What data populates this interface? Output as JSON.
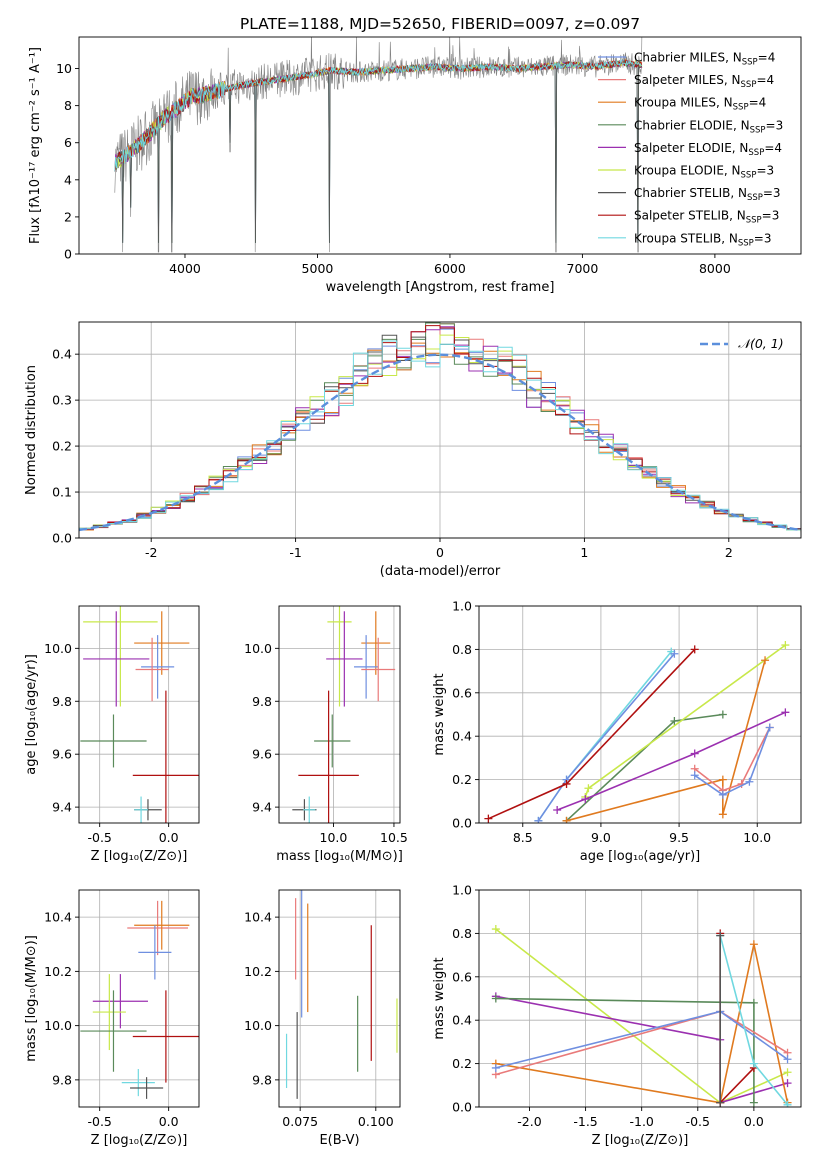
{
  "figure": {
    "title": "PLATE=1188, MJD=52650, FIBERID=0097, z=0.097"
  },
  "colors": {
    "chabrier_miles": "#6f8fe0",
    "salpeter_miles": "#e97a7a",
    "kroupa_miles": "#e07a1f",
    "chabrier_elodie": "#5a8a5a",
    "salpeter_elodie": "#9b30b0",
    "kroupa_elodie": "#c8e84a",
    "chabrier_stelib": "#555555",
    "salpeter_stelib": "#b01010",
    "kroupa_stelib": "#70d8e0",
    "data": "#808080",
    "gauss": "#5b8fdc",
    "salpeter_elodie_alt": "#ee82c8"
  },
  "chart_data": [
    {
      "id": "spectrum",
      "type": "line",
      "xlabel": "wavelength [Angstrom, rest frame]",
      "ylabel": "Flux [fλ10⁻¹⁷ erg cm⁻² s⁻¹ A⁻¹]",
      "xlim": [
        3200,
        8650
      ],
      "ylim": [
        0,
        11.7
      ],
      "xticks": [
        4000,
        5000,
        6000,
        7000,
        8000
      ],
      "yticks": [
        0,
        2,
        4,
        6,
        8,
        10
      ],
      "legend_position": "right",
      "legend": [
        "Chabrier MILES, N_SSP=4",
        "Salpeter MILES, N_SSP=4",
        "Kroupa MILES, N_SSP=4",
        "Chabrier ELODIE, N_SSP=3",
        "Salpeter ELODIE, N_SSP=4",
        "Kroupa ELODIE, N_SSP=3",
        "Chabrier STELIB, N_SSP=3",
        "Salpeter STELIB, N_SSP=3",
        "Kroupa STELIB, N_SSP=3"
      ],
      "continuum": [
        [
          3470,
          4.9
        ],
        [
          3550,
          5.3
        ],
        [
          3650,
          5.9
        ],
        [
          3750,
          6.6
        ],
        [
          3850,
          7.4
        ],
        [
          3950,
          7.9
        ],
        [
          4050,
          8.5
        ],
        [
          4150,
          8.6
        ],
        [
          4300,
          8.9
        ],
        [
          4500,
          9.2
        ],
        [
          4700,
          9.4
        ],
        [
          4900,
          9.6
        ],
        [
          5100,
          9.9
        ],
        [
          5300,
          9.8
        ],
        [
          5500,
          9.9
        ],
        [
          5700,
          10.0
        ],
        [
          5900,
          10.1
        ],
        [
          6100,
          10.0
        ],
        [
          6300,
          10.1
        ],
        [
          6500,
          10.0
        ],
        [
          6700,
          10.1
        ],
        [
          6900,
          10.2
        ],
        [
          7100,
          10.1
        ],
        [
          7300,
          10.3
        ],
        [
          7450,
          10.2
        ]
      ],
      "absorption_lines": [
        [
          3530,
          0.1
        ],
        [
          3590,
          2.0
        ],
        [
          3800,
          0.1
        ],
        [
          3900,
          0.1
        ],
        [
          4340,
          5.5
        ],
        [
          4530,
          0.1
        ],
        [
          5090,
          0.1
        ],
        [
          6800,
          0.1
        ],
        [
          7420,
          0.1
        ]
      ]
    },
    {
      "id": "residuals",
      "type": "line",
      "xlabel": "(data-model)/error",
      "ylabel": "Normed distribution",
      "xlim": [
        -2.5,
        2.5
      ],
      "ylim": [
        0,
        0.47
      ],
      "xticks": [
        -2,
        -1,
        0,
        1,
        2
      ],
      "yticks": [
        0.0,
        0.1,
        0.2,
        0.3,
        0.4
      ],
      "gauss_label": "𝒩(0, 1)",
      "legend_position": "top-right",
      "histogram_bin_width": 0.1,
      "series_count": 9
    },
    {
      "id": "age_vs_Z",
      "type": "scatter",
      "xlabel": "Z [log₁₀(Z/Z⊙)]",
      "ylabel": "age  [log₁₀(age/yr)]",
      "xlim": [
        -0.65,
        0.22
      ],
      "ylim": [
        9.34,
        10.16
      ],
      "xticks": [
        -0.5,
        0.0
      ],
      "yticks": [
        9.4,
        9.6,
        9.8,
        10.0
      ],
      "points": [
        {
          "s": "kroupa_elodie",
          "x": -0.35,
          "xe": 0.27,
          "y": 10.1,
          "ye": 0.32
        },
        {
          "s": "kroupa_miles",
          "x": -0.05,
          "xe": 0.2,
          "y": 10.02,
          "ye": 0.12
        },
        {
          "s": "salpeter_elodie",
          "x": -0.38,
          "xe": 0.24,
          "y": 9.96,
          "ye": 0.18
        },
        {
          "s": "chabrier_miles",
          "x": -0.08,
          "xe": 0.12,
          "y": 9.93,
          "ye": 0.12
        },
        {
          "s": "salpeter_miles",
          "x": -0.12,
          "xe": 0.12,
          "y": 9.92,
          "ye": 0.12
        },
        {
          "s": "chabrier_elodie",
          "x": -0.4,
          "xe": 0.24,
          "y": 9.65,
          "ye": 0.1
        },
        {
          "s": "salpeter_stelib",
          "x": -0.02,
          "xe": 0.24,
          "y": 9.52,
          "ye": 0.32
        },
        {
          "s": "chabrier_stelib",
          "x": -0.15,
          "xe": 0.1,
          "y": 9.39,
          "ye": 0.04
        },
        {
          "s": "kroupa_stelib",
          "x": -0.2,
          "xe": 0.05,
          "y": 9.39,
          "ye": 0.05
        }
      ]
    },
    {
      "id": "age_vs_mass",
      "type": "scatter",
      "xlabel": "mass [log₁₀(M/M⊙)]",
      "ylabel": "",
      "xlim": [
        9.55,
        10.55
      ],
      "ylim": [
        9.34,
        10.16
      ],
      "xticks": [
        10.0,
        10.5
      ],
      "yticks": [
        9.4,
        9.6,
        9.8,
        10.0
      ],
      "points": [
        {
          "s": "kroupa_elodie",
          "x": 10.05,
          "xe": 0.1,
          "y": 10.1,
          "ye": 0.32
        },
        {
          "s": "kroupa_miles",
          "x": 10.35,
          "xe": 0.12,
          "y": 10.02,
          "ye": 0.12
        },
        {
          "s": "salpeter_elodie",
          "x": 10.09,
          "xe": 0.15,
          "y": 9.96,
          "ye": 0.18
        },
        {
          "s": "chabrier_miles",
          "x": 10.27,
          "xe": 0.1,
          "y": 9.93,
          "ye": 0.12
        },
        {
          "s": "salpeter_miles",
          "x": 10.37,
          "xe": 0.14,
          "y": 9.92,
          "ye": 0.12
        },
        {
          "s": "chabrier_elodie",
          "x": 9.99,
          "xe": 0.15,
          "y": 9.65,
          "ye": 0.1
        },
        {
          "s": "salpeter_stelib",
          "x": 9.96,
          "xe": 0.25,
          "y": 9.52,
          "ye": 0.32
        },
        {
          "s": "chabrier_stelib",
          "x": 9.76,
          "xe": 0.1,
          "y": 9.39,
          "ye": 0.04
        },
        {
          "s": "kroupa_stelib",
          "x": 9.8,
          "xe": 0.05,
          "y": 9.39,
          "ye": 0.05
        }
      ]
    },
    {
      "id": "weight_vs_age",
      "type": "line",
      "xlabel": "age  [log₁₀(age/yr)]",
      "ylabel": "mass weight",
      "xlim": [
        8.22,
        10.28
      ],
      "ylim": [
        0,
        1
      ],
      "xticks": [
        8.5,
        9.0,
        9.5,
        10.0
      ],
      "yticks": [
        0.0,
        0.2,
        0.4,
        0.6,
        0.8,
        1.0
      ],
      "series": [
        {
          "s": "kroupa_stelib",
          "x": [
            8.6,
            8.78,
            9.45
          ],
          "y": [
            0.01,
            0.2,
            0.79
          ]
        },
        {
          "s": "chabrier_miles",
          "x": [
            8.6,
            8.78,
            9.47
          ],
          "y": [
            0.01,
            0.2,
            0.78
          ]
        },
        {
          "s": "salpeter_stelib",
          "x": [
            8.28,
            8.78,
            9.6
          ],
          "y": [
            0.02,
            0.18,
            0.8
          ]
        },
        {
          "s": "chabrier_elodie",
          "x": [
            8.78,
            9.47,
            9.78
          ],
          "y": [
            0.01,
            0.47,
            0.5
          ]
        },
        {
          "s": "kroupa_elodie",
          "x": [
            8.9,
            8.92,
            10.18
          ],
          "y": [
            0.12,
            0.16,
            0.82
          ]
        },
        {
          "s": "salpeter_elodie",
          "x": [
            8.72,
            8.9,
            9.6,
            10.18
          ],
          "y": [
            0.06,
            0.11,
            0.32,
            0.51
          ]
        },
        {
          "s": "kroupa_miles",
          "x": [
            8.78,
            9.78,
            9.78,
            10.05
          ],
          "y": [
            0.01,
            0.2,
            0.04,
            0.75
          ]
        },
        {
          "s": "salpeter_miles",
          "x": [
            9.6,
            9.78,
            9.9,
            10.08
          ],
          "y": [
            0.25,
            0.15,
            0.18,
            0.44
          ]
        },
        {
          "s": "chabrier_miles",
          "x": [
            9.6,
            9.78,
            9.95,
            10.08
          ],
          "y": [
            0.22,
            0.13,
            0.19,
            0.44
          ]
        }
      ]
    },
    {
      "id": "mass_vs_Z",
      "type": "scatter",
      "xlabel": "Z [log₁₀(Z/Z⊙)]",
      "ylabel": "mass [log₁₀(M/M⊙)]",
      "xlim": [
        -0.65,
        0.22
      ],
      "ylim": [
        9.7,
        10.5
      ],
      "xticks": [
        -0.5,
        0.0
      ],
      "yticks": [
        9.8,
        10.0,
        10.2,
        10.4
      ],
      "points": [
        {
          "s": "salpeter_miles",
          "x": -0.08,
          "xe": 0.22,
          "y": 10.36,
          "ye": 0.1
        },
        {
          "s": "kroupa_miles",
          "x": -0.05,
          "xe": 0.2,
          "y": 10.37,
          "ye": 0.09
        },
        {
          "s": "chabrier_miles",
          "x": -0.1,
          "xe": 0.12,
          "y": 10.27,
          "ye": 0.1
        },
        {
          "s": "salpeter_elodie",
          "x": -0.35,
          "xe": 0.2,
          "y": 10.09,
          "ye": 0.1
        },
        {
          "s": "kroupa_elodie",
          "x": -0.43,
          "xe": 0.12,
          "y": 10.05,
          "ye": 0.14
        },
        {
          "s": "chabrier_elodie",
          "x": -0.4,
          "xe": 0.24,
          "y": 9.98,
          "ye": 0.15
        },
        {
          "s": "salpeter_stelib",
          "x": -0.02,
          "xe": 0.24,
          "y": 9.96,
          "ye": 0.17
        },
        {
          "s": "kroupa_stelib",
          "x": -0.22,
          "xe": 0.12,
          "y": 9.79,
          "ye": 0.05
        },
        {
          "s": "chabrier_stelib",
          "x": -0.16,
          "xe": 0.12,
          "y": 9.77,
          "ye": 0.04
        }
      ]
    },
    {
      "id": "mass_vs_ebv",
      "type": "scatter",
      "xlabel": "E(B-V)",
      "ylabel": "",
      "xlim": [
        0.068,
        0.108
      ],
      "ylim": [
        9.7,
        10.5
      ],
      "xticks": [
        0.075,
        0.1
      ],
      "yticks": [
        9.8,
        10.0,
        10.2,
        10.4
      ],
      "points": [
        {
          "s": "kroupa_stelib",
          "x": 0.0705,
          "ye": 0.1,
          "y": 9.87
        },
        {
          "s": "salpeter_miles",
          "x": 0.0735,
          "ye": 0.15,
          "y": 10.32
        },
        {
          "s": "chabrier_stelib",
          "x": 0.074,
          "ye": 0.16,
          "y": 9.89
        },
        {
          "s": "chabrier_miles",
          "x": 0.0755,
          "ye": 0.25,
          "y": 10.28
        },
        {
          "s": "kroupa_miles",
          "x": 0.0775,
          "ye": 0.2,
          "y": 10.25
        },
        {
          "s": "chabrier_elodie",
          "x": 0.094,
          "ye": 0.14,
          "y": 9.97
        },
        {
          "s": "salpeter_stelib",
          "x": 0.0985,
          "ye": 0.25,
          "y": 10.12
        },
        {
          "s": "kroupa_elodie",
          "x": 0.107,
          "ye": 0.1,
          "y": 10.0
        }
      ]
    },
    {
      "id": "weight_vs_Z",
      "type": "line",
      "xlabel": "Z [log₁₀(Z/Z⊙)]",
      "ylabel": "mass weight",
      "xlim": [
        -2.45,
        0.42
      ],
      "ylim": [
        0,
        1
      ],
      "xticks": [
        -2.0,
        -1.5,
        -1.0,
        -0.5,
        0.0
      ],
      "yticks": [
        0.0,
        0.2,
        0.4,
        0.6,
        0.8,
        1.0
      ],
      "series": [
        {
          "s": "kroupa_elodie",
          "x": [
            -2.3,
            -0.3,
            0.3
          ],
          "y": [
            0.82,
            0.02,
            0.16
          ]
        },
        {
          "s": "salpeter_elodie",
          "x": [
            -2.3,
            -0.3,
            -0.3,
            0.3
          ],
          "y": [
            0.51,
            0.31,
            0.02,
            0.11
          ]
        },
        {
          "s": "chabrier_elodie",
          "x": [
            -2.3,
            0.0,
            0.0
          ],
          "y": [
            0.5,
            0.48,
            0.02
          ]
        },
        {
          "s": "kroupa_miles",
          "x": [
            -2.3,
            -0.3,
            0.0,
            0.3
          ],
          "y": [
            0.2,
            0.02,
            0.75,
            0.02
          ]
        },
        {
          "s": "salpeter_miles",
          "x": [
            -2.3,
            -0.3,
            0.3
          ],
          "y": [
            0.15,
            0.44,
            0.25
          ]
        },
        {
          "s": "chabrier_miles",
          "x": [
            -2.3,
            -0.3,
            0.3
          ],
          "y": [
            0.18,
            0.44,
            0.22
          ]
        },
        {
          "s": "salpeter_stelib",
          "x": [
            -0.3,
            -0.3,
            0.0
          ],
          "y": [
            0.8,
            0.02,
            0.18
          ]
        },
        {
          "s": "kroupa_stelib",
          "x": [
            -0.3,
            0.0,
            0.3
          ],
          "y": [
            0.79,
            0.2,
            0.01
          ]
        },
        {
          "s": "chabrier_stelib",
          "x": [
            -0.3,
            -0.3
          ],
          "y": [
            0.79,
            0.02
          ]
        }
      ]
    }
  ]
}
